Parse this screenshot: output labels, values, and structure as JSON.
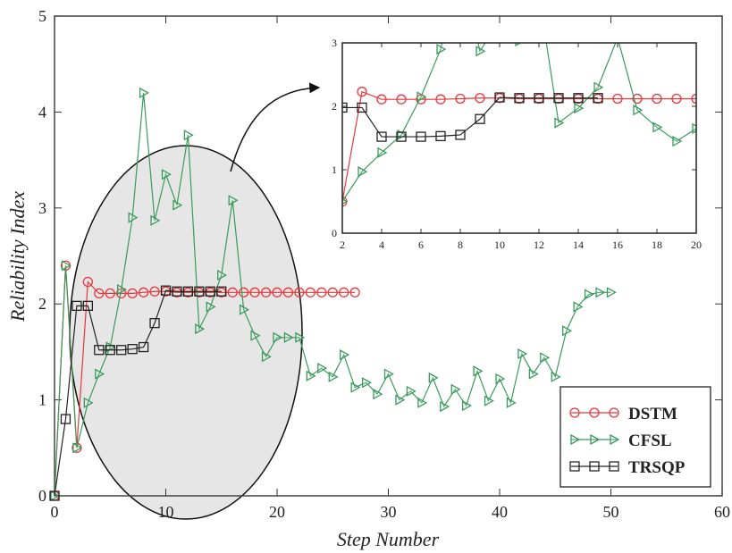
{
  "chart_data": [
    {
      "type": "line",
      "title": "",
      "xlabel": "Step Number",
      "ylabel": "Reliability Index",
      "xlim": [
        0,
        60
      ],
      "ylim": [
        0,
        5
      ],
      "xticks": [
        0,
        10,
        20,
        30,
        40,
        50,
        60
      ],
      "yticks": [
        0,
        1,
        2,
        3,
        4,
        5
      ],
      "grid": false,
      "legend_position": "bottom-right",
      "series": [
        {
          "name": "DSTM",
          "color": "#e8363a",
          "marker": "circle",
          "x": [
            0,
            1,
            2,
            3,
            4,
            5,
            6,
            7,
            8,
            9,
            10,
            11,
            12,
            13,
            14,
            15,
            16,
            17,
            18,
            19,
            20,
            21,
            22,
            23,
            24,
            25,
            26,
            27
          ],
          "y": [
            0,
            2.4,
            0.5,
            2.23,
            2.11,
            2.11,
            2.11,
            2.11,
            2.12,
            2.13,
            2.13,
            2.12,
            2.12,
            2.12,
            2.12,
            2.12,
            2.12,
            2.12,
            2.12,
            2.12,
            2.12,
            2.12,
            2.12,
            2.12,
            2.12,
            2.12,
            2.12,
            2.12
          ]
        },
        {
          "name": "CFSL",
          "color": "#3a9a5c",
          "marker": "triangle-right",
          "x": [
            0,
            1,
            2,
            3,
            4,
            5,
            6,
            7,
            8,
            9,
            10,
            11,
            12,
            13,
            14,
            15,
            16,
            17,
            18,
            19,
            20,
            21,
            22,
            23,
            24,
            25,
            26,
            27,
            28,
            29,
            30,
            31,
            32,
            33,
            34,
            35,
            36,
            37,
            38,
            39,
            40,
            41,
            42,
            43,
            44,
            45,
            46,
            47,
            48,
            49,
            50
          ],
          "y": [
            0,
            2.4,
            0.5,
            0.97,
            1.27,
            1.55,
            2.15,
            2.9,
            4.2,
            2.87,
            3.35,
            3.03,
            3.76,
            1.74,
            1.97,
            2.3,
            3.08,
            1.94,
            1.67,
            1.45,
            1.65,
            1.65,
            1.65,
            1.25,
            1.33,
            1.24,
            1.47,
            1.13,
            1.18,
            1.06,
            1.27,
            1.0,
            1.09,
            0.97,
            1.23,
            0.93,
            1.11,
            0.94,
            1.3,
            0.99,
            1.22,
            0.97,
            1.48,
            1.27,
            1.44,
            1.24,
            1.72,
            1.97,
            2.1,
            2.12,
            2.12
          ]
        },
        {
          "name": "TRSQP",
          "color": "#222222",
          "marker": "square",
          "x": [
            0,
            1,
            2,
            3,
            4,
            5,
            6,
            7,
            8,
            9,
            10,
            11,
            12,
            13,
            14,
            15
          ],
          "y": [
            0,
            0.8,
            1.98,
            1.98,
            1.52,
            1.52,
            1.52,
            1.53,
            1.55,
            1.8,
            2.14,
            2.13,
            2.13,
            2.13,
            2.13,
            2.13
          ]
        }
      ]
    },
    {
      "type": "line",
      "title": "",
      "xlabel": "",
      "ylabel": "",
      "xlim": [
        2,
        20
      ],
      "ylim": [
        0,
        3
      ],
      "xticks": [
        2,
        4,
        6,
        8,
        10,
        12,
        14,
        16,
        18,
        20
      ],
      "yticks": [
        0,
        1,
        2,
        3
      ],
      "grid": false,
      "series": [
        {
          "name": "DSTM",
          "color": "#e8363a",
          "marker": "circle",
          "x": [
            2,
            3,
            4,
            5,
            6,
            7,
            8,
            9,
            10,
            11,
            12,
            13,
            14,
            15,
            16,
            17,
            18,
            19,
            20
          ],
          "y": [
            0.5,
            2.23,
            2.11,
            2.11,
            2.11,
            2.11,
            2.12,
            2.13,
            2.13,
            2.12,
            2.12,
            2.12,
            2.12,
            2.12,
            2.12,
            2.12,
            2.12,
            2.12,
            2.12
          ]
        },
        {
          "name": "CFSL",
          "color": "#3a9a5c",
          "marker": "triangle-right",
          "x": [
            2,
            3,
            4,
            5,
            6,
            7,
            8,
            9,
            10,
            11,
            12,
            13,
            14,
            15,
            16,
            17,
            18,
            19,
            20
          ],
          "y": [
            0.5,
            0.97,
            1.27,
            1.55,
            2.15,
            2.9,
            4.2,
            2.87,
            3.35,
            3.03,
            3.76,
            1.74,
            1.97,
            2.3,
            3.08,
            1.94,
            1.67,
            1.45,
            1.65
          ]
        },
        {
          "name": "TRSQP",
          "color": "#222222",
          "marker": "square",
          "x": [
            2,
            3,
            4,
            5,
            6,
            7,
            8,
            9,
            10,
            11,
            12,
            13,
            14,
            15
          ],
          "y": [
            1.98,
            1.98,
            1.52,
            1.52,
            1.52,
            1.53,
            1.55,
            1.8,
            2.14,
            2.13,
            2.13,
            2.13,
            2.13,
            2.13
          ]
        }
      ]
    }
  ]
}
